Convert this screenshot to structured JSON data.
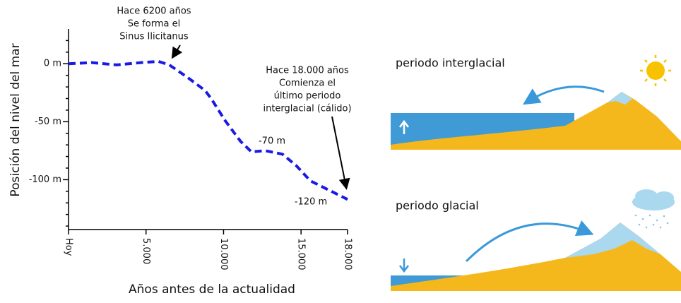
{
  "chart_data": {
    "type": "line",
    "xlabel": "Años antes de la actualidad",
    "ylabel": "Posición del nivel del mar",
    "x": [
      0,
      1500,
      3100,
      4700,
      5800,
      6500,
      7700,
      8800,
      9200,
      10100,
      11100,
      11800,
      12700,
      13800,
      14700,
      15600,
      16500,
      18000
    ],
    "series": [
      {
        "color": "#1a1ae6",
        "values": [
          0,
          1,
          -1,
          1,
          2,
          -1,
          -12,
          -23,
          -30,
          -49,
          -67,
          -76,
          -75,
          -78,
          -88,
          -101,
          -107,
          -117
        ]
      }
    ],
    "xlim": [
      0,
      18000
    ],
    "xticks": [
      {
        "value": 0,
        "label": "Hoy"
      },
      {
        "value": 5000,
        "label": "5.000"
      },
      {
        "value": 10000,
        "label": "10.000"
      },
      {
        "value": 15000,
        "label": "15.000"
      },
      {
        "value": 18000,
        "label": "18.000"
      }
    ],
    "ylim": [
      -143,
      30
    ],
    "yticks": [
      {
        "value": 0,
        "label": "0 m"
      },
      {
        "value": -50,
        "label": "-50 m"
      },
      {
        "value": -100,
        "label": "-100 m"
      }
    ],
    "y_minor_ticks": [
      -140,
      -130,
      -120,
      -110,
      -90,
      -80,
      -70,
      -60,
      -40,
      -30,
      -20,
      -10,
      10,
      20
    ],
    "annotations": [
      {
        "lines": [
          "Hace 6200 años",
          "Se forma el",
          "Sinus Ilicitanus"
        ]
      },
      {
        "lines": [
          "Hace 18.000 años",
          "Comienza el",
          "último periodo",
          "interglacial (cálido)"
        ]
      },
      {
        "lines": [
          "-70 m"
        ]
      },
      {
        "lines": [
          "-120 m"
        ]
      }
    ]
  },
  "diagrams": {
    "interglacial": "periodo interglacial",
    "glacial": "periodo glacial"
  }
}
